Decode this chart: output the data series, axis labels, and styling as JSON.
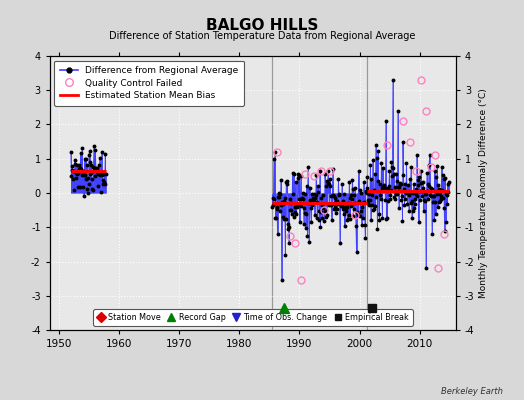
{
  "title": "BALGO HILLS",
  "subtitle": "Difference of Station Temperature Data from Regional Average",
  "ylabel": "Monthly Temperature Anomaly Difference (°C)",
  "ylim": [
    -4,
    4
  ],
  "xlim": [
    1948.5,
    2016
  ],
  "background_color": "#d8d8d8",
  "plot_bg_color": "#e8e8e8",
  "grid_color": "#ffffff",
  "seg1_x_start": 1952.0,
  "seg1_x_end": 1957.8,
  "seg1_bias": 0.65,
  "seg2_x_start": 1985.5,
  "seg2_x_end": 2001.2,
  "seg2_bias": -0.28,
  "seg3_x_start": 2001.2,
  "seg3_x_end": 2014.8,
  "seg3_bias": 0.05,
  "record_gap_x": 1987.5,
  "record_gap_y": -3.35,
  "empirical_break_x": 2002.0,
  "empirical_break_y": -3.35,
  "vert_lines": [
    1985.5,
    2001.2
  ],
  "qc_s2": [
    [
      1986.3,
      1.2
    ],
    [
      1988.5,
      -1.25
    ],
    [
      1989.2,
      -1.45
    ],
    [
      1990.3,
      -2.55
    ],
    [
      1991.0,
      0.55
    ],
    [
      1992.5,
      0.5
    ],
    [
      1995.0,
      0.65
    ],
    [
      1999.2,
      -0.65
    ],
    [
      1993.5,
      0.65
    ],
    [
      1994.0,
      -0.5
    ]
  ],
  "qc_s3": [
    [
      2004.5,
      1.4
    ],
    [
      2007.2,
      2.1
    ],
    [
      2008.4,
      1.5
    ],
    [
      2009.3,
      0.65
    ],
    [
      2010.2,
      3.3
    ],
    [
      2011.0,
      2.4
    ],
    [
      2011.8,
      0.75
    ],
    [
      2012.5,
      1.1
    ],
    [
      2013.0,
      -2.2
    ],
    [
      2014.0,
      -1.2
    ]
  ],
  "colors": {
    "line": "#4040ff",
    "marker": "#000000",
    "bias_line": "#ff0000",
    "qc_failed": "#ff80c0",
    "station_move": "#dd0000",
    "record_gap": "#008000",
    "time_of_obs": "#2222cc",
    "empirical_break": "#111111",
    "vert_line": "#999999"
  },
  "watermark": "Berkeley Earth"
}
